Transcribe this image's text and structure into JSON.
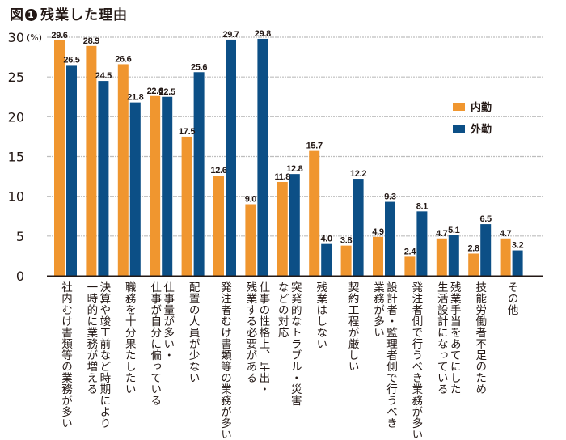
{
  "title": {
    "prefix": "図",
    "number": "1",
    "text": "残業した理由"
  },
  "colors": {
    "series1": "#f0962f",
    "series2": "#0c4f86",
    "grid": "#bdbdbd",
    "axis": "#231815"
  },
  "chart_data": {
    "type": "bar",
    "title": "残業した理由",
    "xlabel": "",
    "ylabel": "(%)",
    "ylim": [
      0,
      30
    ],
    "yticks": [
      0,
      5,
      10,
      15,
      20,
      25,
      30
    ],
    "ytick_labels": [
      "0",
      "5",
      "10",
      "15",
      "20",
      "25",
      "30"
    ],
    "y_unit": "(%)",
    "grid": true,
    "legend_position": "right",
    "categories": [
      "社内むけ書類等の業務が多い",
      "決算や竣工前など時期により\n一時的に業務が増える",
      "職務を十分果たしたい",
      "仕事量が多い・\n仕事が自分に偏っている",
      "配置の人員が少ない",
      "発注者むけ書類等の業務が多い",
      "仕事の性格上、早出・\n残業する必要がある",
      "突発的なトラブル・災害\nなどの対応",
      "残業はしない",
      "契約工程が厳しい",
      "設計者・監理者側で行うべき\n業務が多い",
      "発注者側で行うべき業務が多い",
      "残業手当をあてにした\n生活設計になっている",
      "技能労働者不足のため",
      "その他"
    ],
    "series": [
      {
        "name": "内勤",
        "values": [
          29.6,
          28.9,
          26.6,
          22.6,
          17.5,
          12.6,
          9.0,
          11.8,
          15.7,
          3.8,
          4.9,
          2.4,
          4.7,
          2.8,
          4.7
        ],
        "labels": [
          "29.6",
          "28.9",
          "26.6",
          "22.6",
          "17.5",
          "12.6",
          "9.0",
          "11.8",
          "15.7",
          "3.8",
          "4.9",
          "2.4",
          "4.7",
          "2.8",
          "4.7"
        ]
      },
      {
        "name": "外勤",
        "values": [
          26.5,
          24.5,
          21.8,
          22.5,
          25.6,
          29.7,
          29.8,
          12.8,
          4.0,
          12.2,
          9.3,
          8.1,
          5.1,
          6.5,
          3.2
        ],
        "labels": [
          "26.5",
          "24.5",
          "21.8",
          "22.5",
          "25.6",
          "29.7",
          "29.8",
          "12.8",
          "4.0",
          "12.2",
          "9.3",
          "8.1",
          "5.1",
          "6.5",
          "3.2"
        ]
      }
    ]
  }
}
